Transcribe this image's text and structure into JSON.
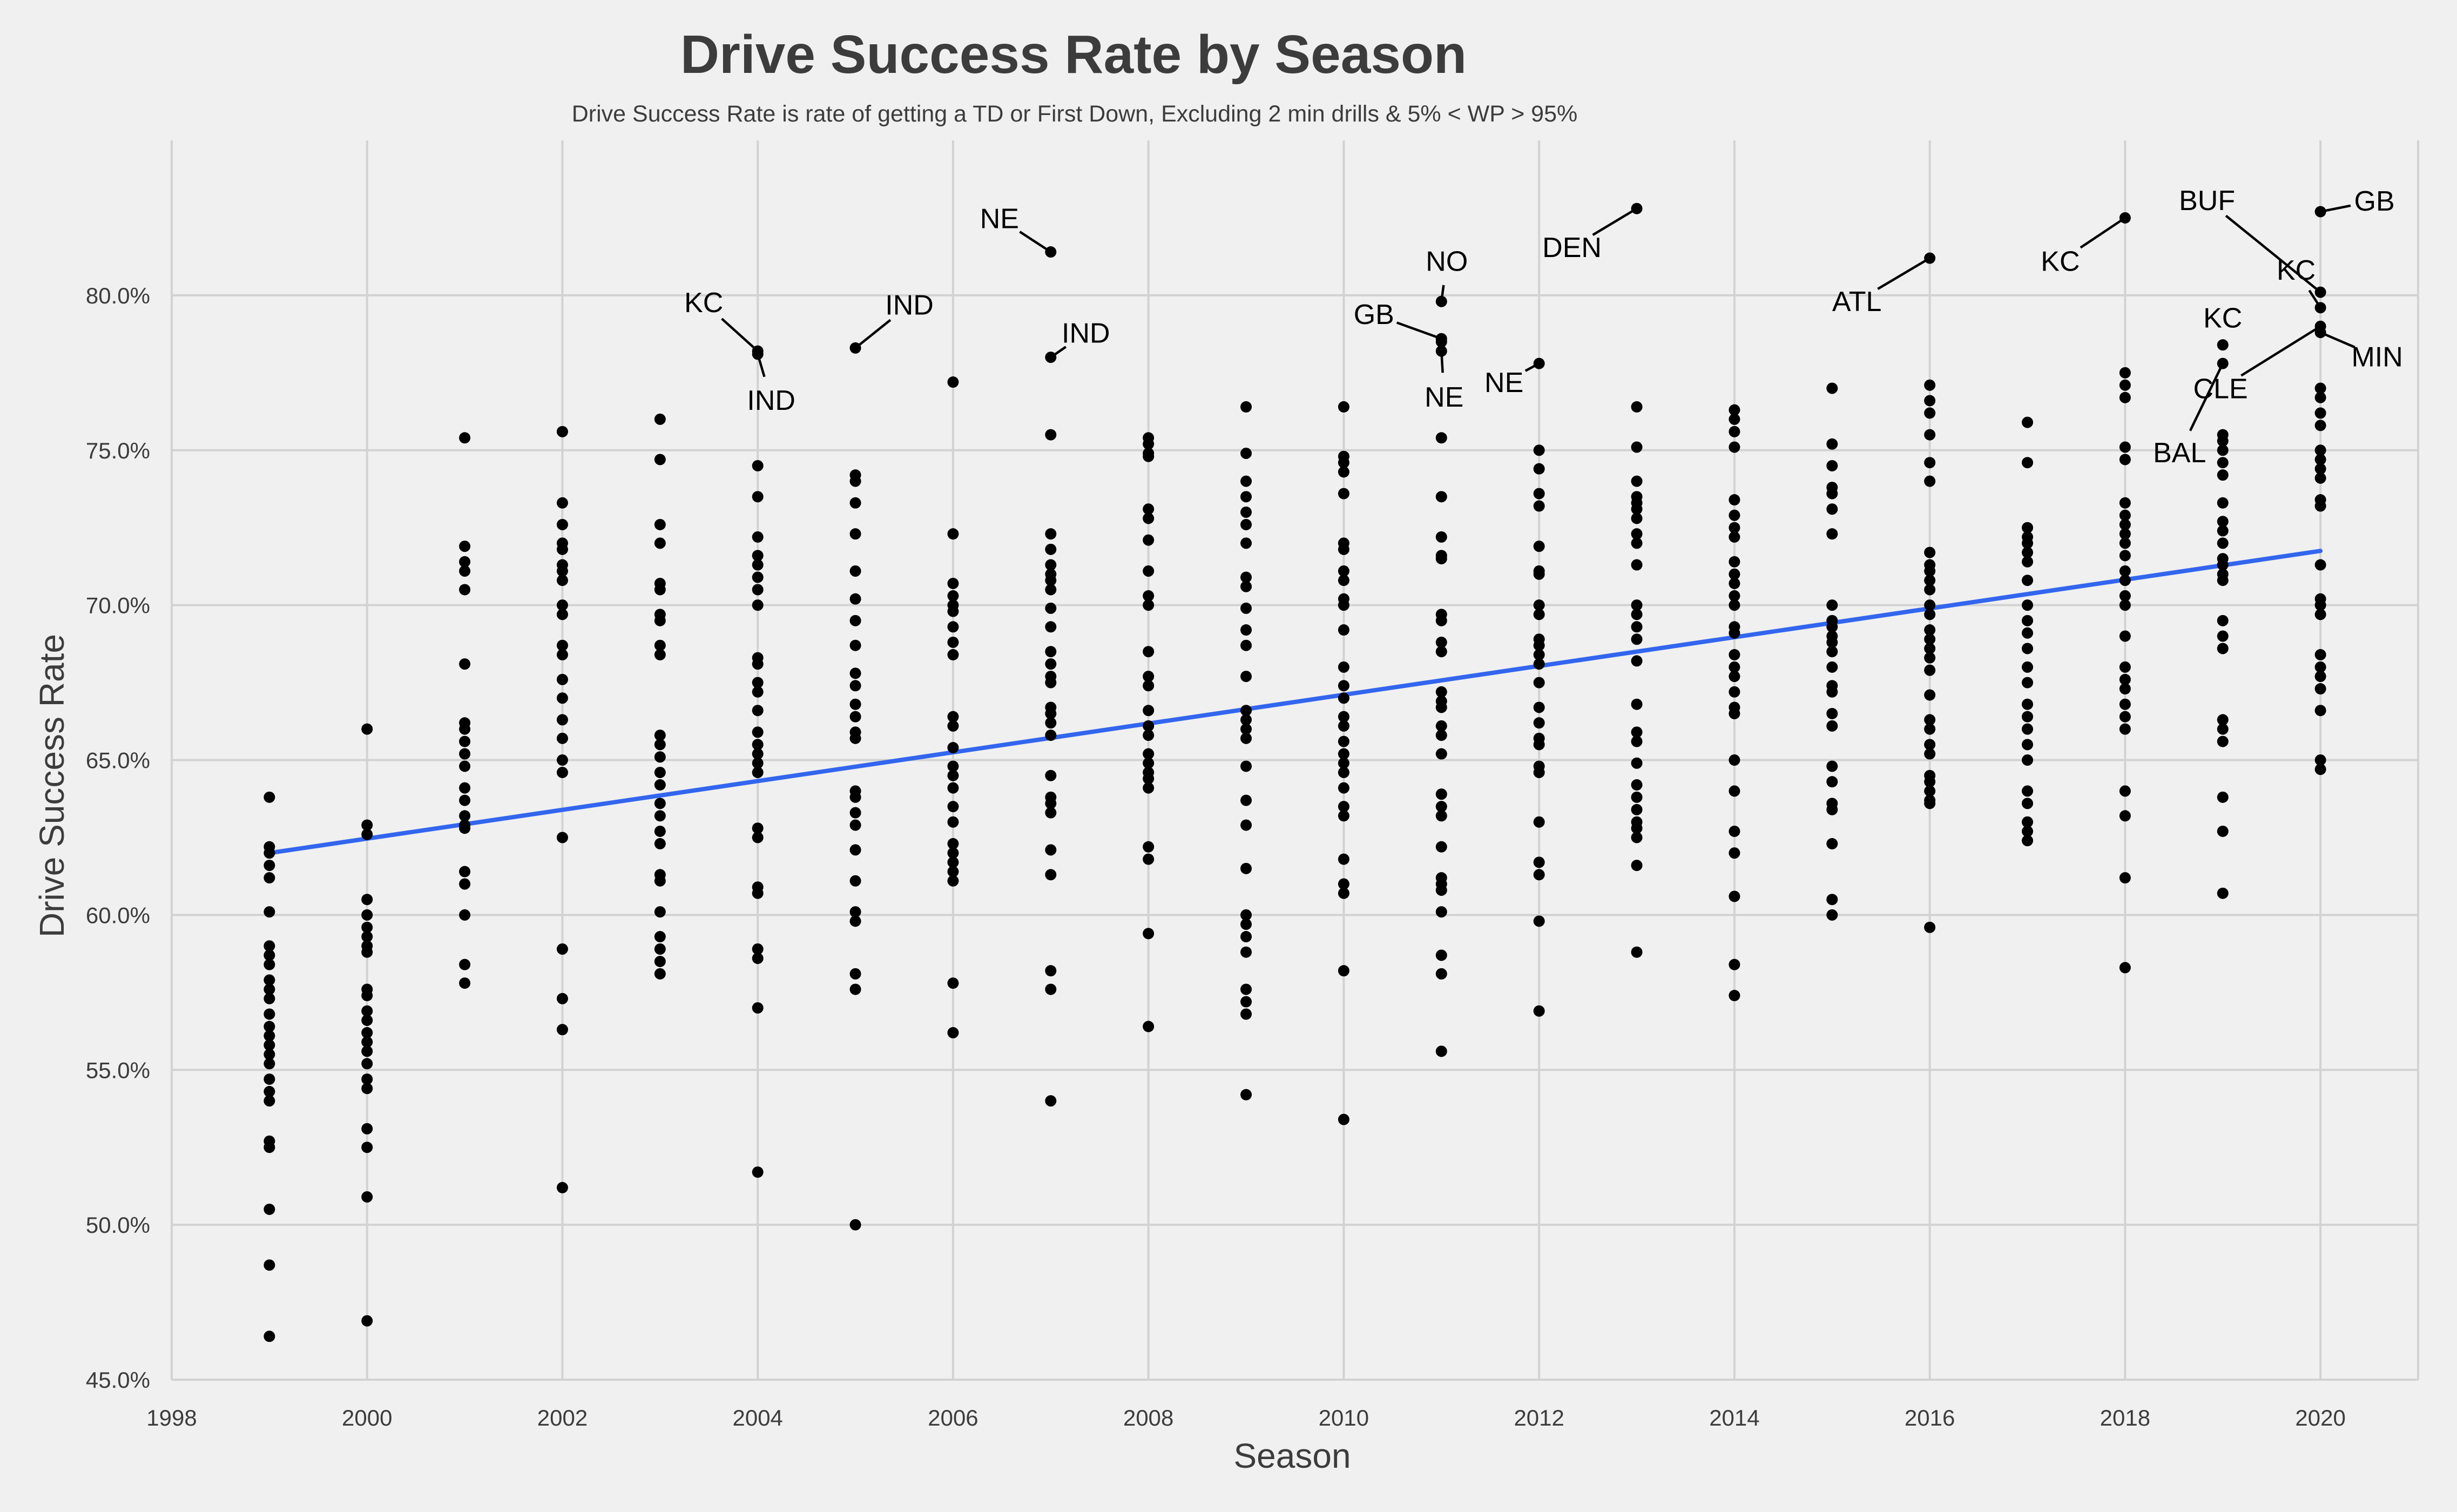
{
  "chart_data": {
    "type": "scatter",
    "title": "Drive Success Rate by Season",
    "subtitle": "Drive Success Rate is rate of getting a TD or First Down, Excluding 2 min drills & 5% < WP > 95%",
    "xlabel": "Season",
    "ylabel": "Drive Success Rate",
    "xlim": [
      1998,
      2021
    ],
    "ylim": [
      0.45,
      0.85
    ],
    "x_ticks": [
      1998,
      2000,
      2002,
      2004,
      2006,
      2008,
      2010,
      2012,
      2014,
      2016,
      2018,
      2020
    ],
    "x_tick_labels": [
      "1998",
      "2000",
      "2002",
      "2004",
      "2006",
      "2008",
      "2010",
      "2012",
      "2014",
      "2016",
      "2018",
      "2020"
    ],
    "y_ticks": [
      0.45,
      0.5,
      0.55,
      0.6,
      0.65,
      0.7,
      0.75,
      0.8
    ],
    "y_tick_labels": [
      "45.0%",
      "50.0%",
      "55.0%",
      "60.0%",
      "65.0%",
      "70.0%",
      "75.0%",
      "80.0%"
    ],
    "grid": true,
    "colors": {
      "background": "#f0f0f0",
      "grid": "#d2d2d2",
      "points": "#000000",
      "trend": "#3366ee",
      "text": "#3c3c3c"
    },
    "trend_line": {
      "x": [
        1999,
        2020
      ],
      "y": [
        0.62,
        0.7175
      ]
    },
    "points": [
      {
        "season": 1999,
        "values": [
          0.638,
          0.622,
          0.62,
          0.616,
          0.612,
          0.601,
          0.59,
          0.587,
          0.584,
          0.579,
          0.576,
          0.573,
          0.568,
          0.564,
          0.561,
          0.558,
          0.555,
          0.552,
          0.547,
          0.543,
          0.54,
          0.527,
          0.525,
          0.505,
          0.487,
          0.464
        ]
      },
      {
        "season": 2000,
        "values": [
          0.66,
          0.629,
          0.626,
          0.605,
          0.6,
          0.596,
          0.593,
          0.59,
          0.588,
          0.576,
          0.574,
          0.569,
          0.566,
          0.562,
          0.559,
          0.556,
          0.552,
          0.547,
          0.544,
          0.531,
          0.525,
          0.509,
          0.469
        ]
      },
      {
        "season": 2001,
        "values": [
          0.754,
          0.719,
          0.714,
          0.711,
          0.705,
          0.681,
          0.662,
          0.66,
          0.656,
          0.652,
          0.648,
          0.641,
          0.637,
          0.632,
          0.629,
          0.628,
          0.614,
          0.61,
          0.6,
          0.584,
          0.578
        ]
      },
      {
        "season": 2002,
        "values": [
          0.756,
          0.733,
          0.726,
          0.72,
          0.718,
          0.713,
          0.711,
          0.708,
          0.7,
          0.697,
          0.687,
          0.684,
          0.676,
          0.67,
          0.663,
          0.657,
          0.65,
          0.646,
          0.625,
          0.589,
          0.573,
          0.563,
          0.512
        ]
      },
      {
        "season": 2003,
        "values": [
          0.76,
          0.747,
          0.726,
          0.72,
          0.707,
          0.705,
          0.697,
          0.695,
          0.687,
          0.684,
          0.658,
          0.655,
          0.651,
          0.646,
          0.642,
          0.636,
          0.632,
          0.627,
          0.623,
          0.613,
          0.611,
          0.601,
          0.593,
          0.589,
          0.585,
          0.581
        ]
      },
      {
        "season": 2004,
        "values": [
          0.782,
          0.781,
          0.745,
          0.735,
          0.722,
          0.716,
          0.713,
          0.709,
          0.705,
          0.7,
          0.683,
          0.681,
          0.675,
          0.672,
          0.666,
          0.659,
          0.655,
          0.652,
          0.649,
          0.646,
          0.628,
          0.625,
          0.609,
          0.607,
          0.589,
          0.586,
          0.57,
          0.517
        ]
      },
      {
        "season": 2005,
        "values": [
          0.783,
          0.742,
          0.74,
          0.733,
          0.723,
          0.711,
          0.702,
          0.695,
          0.687,
          0.678,
          0.674,
          0.668,
          0.664,
          0.659,
          0.657,
          0.64,
          0.638,
          0.633,
          0.629,
          0.621,
          0.611,
          0.601,
          0.598,
          0.581,
          0.576,
          0.5
        ]
      },
      {
        "season": 2006,
        "values": [
          0.772,
          0.723,
          0.707,
          0.703,
          0.7,
          0.698,
          0.693,
          0.688,
          0.684,
          0.664,
          0.661,
          0.654,
          0.648,
          0.645,
          0.641,
          0.635,
          0.63,
          0.623,
          0.62,
          0.617,
          0.614,
          0.611,
          0.578,
          0.562
        ]
      },
      {
        "season": 2007,
        "values": [
          0.814,
          0.78,
          0.755,
          0.723,
          0.718,
          0.713,
          0.71,
          0.708,
          0.705,
          0.699,
          0.693,
          0.685,
          0.681,
          0.677,
          0.675,
          0.667,
          0.665,
          0.662,
          0.658,
          0.645,
          0.638,
          0.636,
          0.633,
          0.621,
          0.613,
          0.582,
          0.576,
          0.54
        ]
      },
      {
        "season": 2008,
        "values": [
          0.754,
          0.752,
          0.749,
          0.748,
          0.731,
          0.728,
          0.721,
          0.711,
          0.703,
          0.7,
          0.685,
          0.677,
          0.674,
          0.666,
          0.661,
          0.658,
          0.652,
          0.649,
          0.646,
          0.644,
          0.641,
          0.622,
          0.618,
          0.594,
          0.564
        ]
      },
      {
        "season": 2009,
        "values": [
          0.764,
          0.749,
          0.74,
          0.735,
          0.73,
          0.726,
          0.72,
          0.709,
          0.706,
          0.699,
          0.692,
          0.687,
          0.677,
          0.666,
          0.663,
          0.66,
          0.657,
          0.648,
          0.637,
          0.629,
          0.615,
          0.6,
          0.597,
          0.593,
          0.588,
          0.576,
          0.572,
          0.568,
          0.542
        ]
      },
      {
        "season": 2010,
        "values": [
          0.764,
          0.748,
          0.746,
          0.743,
          0.736,
          0.72,
          0.718,
          0.711,
          0.708,
          0.702,
          0.7,
          0.692,
          0.68,
          0.674,
          0.67,
          0.664,
          0.661,
          0.656,
          0.652,
          0.649,
          0.646,
          0.641,
          0.635,
          0.632,
          0.618,
          0.61,
          0.607,
          0.582,
          0.534
        ]
      },
      {
        "season": 2011,
        "values": [
          0.798,
          0.786,
          0.785,
          0.782,
          0.754,
          0.735,
          0.722,
          0.716,
          0.715,
          0.697,
          0.695,
          0.688,
          0.685,
          0.672,
          0.669,
          0.667,
          0.661,
          0.658,
          0.652,
          0.639,
          0.635,
          0.632,
          0.622,
          0.612,
          0.61,
          0.608,
          0.601,
          0.587,
          0.581,
          0.556
        ]
      },
      {
        "season": 2012,
        "values": [
          0.778,
          0.75,
          0.744,
          0.736,
          0.732,
          0.719,
          0.711,
          0.71,
          0.7,
          0.697,
          0.689,
          0.687,
          0.684,
          0.681,
          0.675,
          0.667,
          0.662,
          0.657,
          0.655,
          0.648,
          0.646,
          0.63,
          0.617,
          0.613,
          0.598,
          0.569
        ]
      },
      {
        "season": 2013,
        "values": [
          0.828,
          0.764,
          0.751,
          0.74,
          0.735,
          0.733,
          0.731,
          0.728,
          0.723,
          0.72,
          0.713,
          0.7,
          0.697,
          0.693,
          0.689,
          0.682,
          0.668,
          0.659,
          0.656,
          0.649,
          0.642,
          0.638,
          0.634,
          0.63,
          0.628,
          0.625,
          0.616,
          0.588
        ]
      },
      {
        "season": 2014,
        "values": [
          0.763,
          0.76,
          0.756,
          0.751,
          0.734,
          0.729,
          0.725,
          0.722,
          0.714,
          0.71,
          0.707,
          0.703,
          0.7,
          0.693,
          0.691,
          0.684,
          0.68,
          0.677,
          0.672,
          0.667,
          0.665,
          0.65,
          0.64,
          0.627,
          0.62,
          0.606,
          0.584,
          0.574
        ]
      },
      {
        "season": 2015,
        "values": [
          0.77,
          0.752,
          0.745,
          0.738,
          0.736,
          0.731,
          0.723,
          0.7,
          0.695,
          0.693,
          0.69,
          0.688,
          0.685,
          0.68,
          0.674,
          0.672,
          0.665,
          0.661,
          0.648,
          0.643,
          0.636,
          0.634,
          0.623,
          0.605,
          0.6
        ]
      },
      {
        "season": 2016,
        "values": [
          0.812,
          0.771,
          0.766,
          0.762,
          0.755,
          0.746,
          0.74,
          0.717,
          0.713,
          0.711,
          0.708,
          0.705,
          0.7,
          0.697,
          0.692,
          0.689,
          0.686,
          0.683,
          0.679,
          0.671,
          0.663,
          0.66,
          0.655,
          0.652,
          0.645,
          0.643,
          0.64,
          0.637,
          0.636,
          0.596
        ]
      },
      {
        "season": 2017,
        "values": [
          0.759,
          0.746,
          0.725,
          0.722,
          0.72,
          0.717,
          0.714,
          0.708,
          0.7,
          0.695,
          0.691,
          0.686,
          0.68,
          0.675,
          0.668,
          0.664,
          0.66,
          0.655,
          0.65,
          0.64,
          0.636,
          0.63,
          0.627,
          0.624
        ]
      },
      {
        "season": 2018,
        "values": [
          0.825,
          0.775,
          0.771,
          0.767,
          0.751,
          0.747,
          0.733,
          0.729,
          0.726,
          0.723,
          0.72,
          0.716,
          0.711,
          0.708,
          0.703,
          0.7,
          0.69,
          0.68,
          0.676,
          0.673,
          0.668,
          0.664,
          0.66,
          0.64,
          0.632,
          0.612,
          0.583
        ]
      },
      {
        "season": 2019,
        "values": [
          0.784,
          0.778,
          0.755,
          0.753,
          0.75,
          0.746,
          0.742,
          0.733,
          0.727,
          0.724,
          0.72,
          0.715,
          0.713,
          0.71,
          0.708,
          0.695,
          0.69,
          0.686,
          0.663,
          0.66,
          0.656,
          0.638,
          0.627,
          0.607
        ]
      },
      {
        "season": 2020,
        "values": [
          0.827,
          0.801,
          0.796,
          0.79,
          0.788,
          0.77,
          0.767,
          0.762,
          0.758,
          0.75,
          0.747,
          0.744,
          0.741,
          0.734,
          0.732,
          0.713,
          0.702,
          0.7,
          0.697,
          0.684,
          0.68,
          0.677,
          0.673,
          0.666,
          0.65,
          0.647
        ]
      }
    ],
    "annotations": [
      {
        "label": "KC",
        "x": 2004,
        "y": 0.782
      },
      {
        "label": "IND",
        "x": 2004,
        "y": 0.781
      },
      {
        "label": "IND",
        "x": 2005,
        "y": 0.783
      },
      {
        "label": "NE",
        "x": 2007,
        "y": 0.814
      },
      {
        "label": "IND",
        "x": 2007,
        "y": 0.78
      },
      {
        "label": "NO",
        "x": 2011,
        "y": 0.798
      },
      {
        "label": "GB",
        "x": 2011,
        "y": 0.786
      },
      {
        "label": "NE",
        "x": 2011,
        "y": 0.782
      },
      {
        "label": "NE",
        "x": 2012,
        "y": 0.778
      },
      {
        "label": "DEN",
        "x": 2013,
        "y": 0.828
      },
      {
        "label": "ATL",
        "x": 2016,
        "y": 0.812
      },
      {
        "label": "KC",
        "x": 2018,
        "y": 0.825
      },
      {
        "label": "KC",
        "x": 2019,
        "y": 0.784
      },
      {
        "label": "BAL",
        "x": 2019,
        "y": 0.778
      },
      {
        "label": "GB",
        "x": 2020,
        "y": 0.827
      },
      {
        "label": "BUF",
        "x": 2020,
        "y": 0.801
      },
      {
        "label": "KC",
        "x": 2020,
        "y": 0.796
      },
      {
        "label": "CLE",
        "x": 2020,
        "y": 0.79
      },
      {
        "label": "MIN",
        "x": 2020,
        "y": 0.788
      }
    ]
  }
}
